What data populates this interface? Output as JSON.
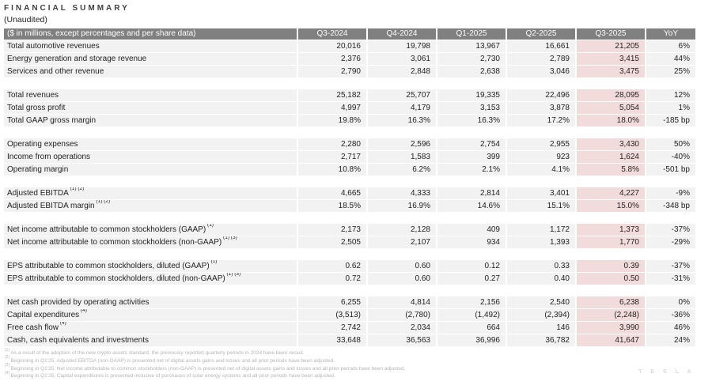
{
  "page": {
    "title": "FINANCIAL SUMMARY",
    "subtitle": "(Unaudited)",
    "watermark": "T E S L A"
  },
  "colors": {
    "header_bg": "#808080",
    "row_bg": "#f2f2f2",
    "highlight_bg": "#f2dcdb",
    "footnote_text": "#b5b5b5",
    "header_text": "#ffffff"
  },
  "table": {
    "header": {
      "label": "($ in millions, except percentages and per share data)",
      "columns": [
        "Q3-2024",
        "Q4-2024",
        "Q1-2025",
        "Q2-2025",
        "Q3-2025",
        "YoY"
      ],
      "highlight_column": "Q3-2025"
    },
    "sections": [
      {
        "rows": [
          {
            "label": "Total automotive revenues",
            "sup": "",
            "values": [
              "20,016",
              "19,798",
              "13,967",
              "16,661",
              "21,205",
              "6%"
            ]
          },
          {
            "label": "Energy generation and storage revenue",
            "sup": "",
            "values": [
              "2,376",
              "3,061",
              "2,730",
              "2,789",
              "3,415",
              "44%"
            ]
          },
          {
            "label": "Services and other revenue",
            "sup": "",
            "values": [
              "2,790",
              "2,848",
              "2,638",
              "3,046",
              "3,475",
              "25%"
            ]
          }
        ]
      },
      {
        "rows": [
          {
            "label": "Total revenues",
            "sup": "",
            "values": [
              "25,182",
              "25,707",
              "19,335",
              "22,496",
              "28,095",
              "12%"
            ]
          },
          {
            "label": "Total gross profit",
            "sup": "",
            "values": [
              "4,997",
              "4,179",
              "3,153",
              "3,878",
              "5,054",
              "1%"
            ]
          },
          {
            "label": "Total GAAP gross margin",
            "sup": "",
            "values": [
              "19.8%",
              "16.3%",
              "16.3%",
              "17.2%",
              "18.0%",
              "-185 bp"
            ]
          }
        ]
      },
      {
        "rows": [
          {
            "label": "Operating expenses",
            "sup": "",
            "values": [
              "2,280",
              "2,596",
              "2,754",
              "2,955",
              "3,430",
              "50%"
            ]
          },
          {
            "label": "Income from operations",
            "sup": "",
            "values": [
              "2,717",
              "1,583",
              "399",
              "923",
              "1,624",
              "-40%"
            ]
          },
          {
            "label": "Operating margin",
            "sup": "",
            "values": [
              "10.8%",
              "6.2%",
              "2.1%",
              "4.1%",
              "5.8%",
              "-501 bp"
            ]
          }
        ]
      },
      {
        "rows": [
          {
            "label": "Adjusted EBITDA",
            "sup": "(1) (2)",
            "values": [
              "4,665",
              "4,333",
              "2,814",
              "3,401",
              "4,227",
              "-9%"
            ]
          },
          {
            "label": "Adjusted EBITDA margin",
            "sup": "(1) (2)",
            "values": [
              "18.5%",
              "16.9%",
              "14.6%",
              "15.1%",
              "15.0%",
              "-348 bp"
            ]
          }
        ]
      },
      {
        "rows": [
          {
            "label": "Net income attributable to common stockholders (GAAP)",
            "sup": "(1)",
            "values": [
              "2,173",
              "2,128",
              "409",
              "1,172",
              "1,373",
              "-37%"
            ]
          },
          {
            "label": "Net income attributable to common stockholders (non-GAAP)",
            "sup": "(1) (3)",
            "values": [
              "2,505",
              "2,107",
              "934",
              "1,393",
              "1,770",
              "-29%"
            ]
          }
        ]
      },
      {
        "rows": [
          {
            "label": "EPS attributable to common stockholders, diluted (GAAP)",
            "sup": "(1)",
            "values": [
              "0.62",
              "0.60",
              "0.12",
              "0.33",
              "0.39",
              "-37%"
            ]
          },
          {
            "label": "EPS attributable to common stockholders, diluted (non-GAAP)",
            "sup": "(1) (3)",
            "values": [
              "0.72",
              "0.60",
              "0.27",
              "0.40",
              "0.50",
              "-31%"
            ]
          }
        ]
      },
      {
        "rows": [
          {
            "label": "Net cash provided by operating activities",
            "sup": "",
            "values": [
              "6,255",
              "4,814",
              "2,156",
              "2,540",
              "6,238",
              "0%"
            ]
          },
          {
            "label": "Capital expenditures",
            "sup": "(4)",
            "values": [
              "(3,513)",
              "(2,780)",
              "(1,492)",
              "(2,394)",
              "(2,248)",
              "-36%"
            ]
          },
          {
            "label": "Free cash flow",
            "sup": "(4)",
            "values": [
              "2,742",
              "2,034",
              "664",
              "146",
              "3,990",
              "46%"
            ]
          },
          {
            "label": "Cash, cash equivalents and investments",
            "sup": "",
            "values": [
              "33,648",
              "36,563",
              "36,996",
              "36,782",
              "41,647",
              "24%"
            ]
          }
        ]
      }
    ]
  },
  "footnotes": [
    {
      "marker": "(1)",
      "text": "As a result of the adoption of the new crypto assets standard, the previously reported quarterly periods in 2024 have been recast."
    },
    {
      "marker": "(2)",
      "text": "Beginning in Q1'25, Adjusted EBITDA (non-GAAP) is presented net of digital assets gains and losses and all prior periods have been adjusted."
    },
    {
      "marker": "(3)",
      "text": "Beginning in Q1'25, Net income attributable to common stockholders (non-GAAP) is presented net of digital assets gains and losses and all prior periods have been adjusted."
    },
    {
      "marker": "(4)",
      "text": "Beginning in Q1'25, Capital expenditures is presented inclusive of purchases of solar energy systems and all prior periods have been adjusted."
    }
  ]
}
